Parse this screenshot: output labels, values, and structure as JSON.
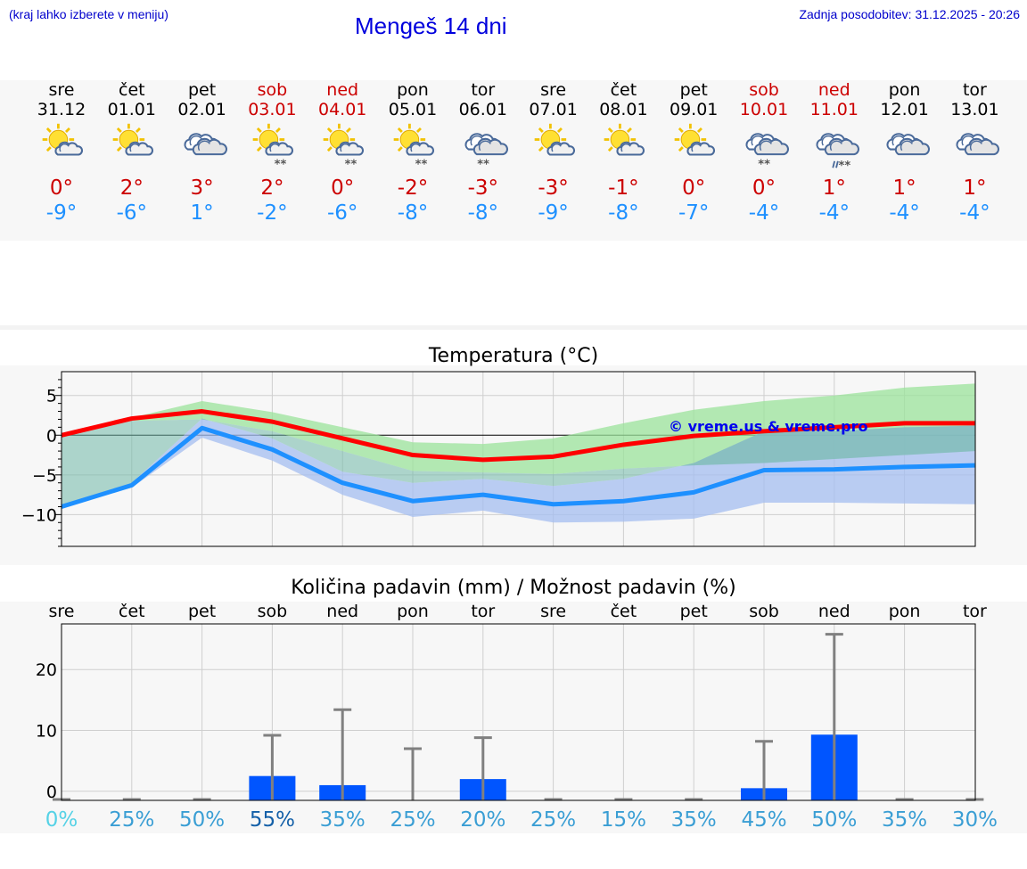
{
  "header": {
    "hint": "(kraj lahko izberete v meniju)",
    "title": "Mengeš 14 dni",
    "updated": "Zadnja posodobitev: 31.12.2025 - 20:26"
  },
  "days": [
    {
      "name": "sre",
      "date": "31.12",
      "weekend": false,
      "icon": "sun-cloud-icon",
      "tmax": "0°",
      "tmin": "-9°"
    },
    {
      "name": "čet",
      "date": "01.01",
      "weekend": false,
      "icon": "sun-cloud-icon",
      "tmax": "2°",
      "tmin": "-6°"
    },
    {
      "name": "pet",
      "date": "02.01",
      "weekend": false,
      "icon": "cloudy-icon",
      "tmax": "3°",
      "tmin": "1°"
    },
    {
      "name": "sob",
      "date": "03.01",
      "weekend": true,
      "icon": "sun-cloud-snow-icon",
      "tmax": "2°",
      "tmin": "-2°"
    },
    {
      "name": "ned",
      "date": "04.01",
      "weekend": true,
      "icon": "sun-cloud-snow-icon",
      "tmax": "0°",
      "tmin": "-6°"
    },
    {
      "name": "pon",
      "date": "05.01",
      "weekend": false,
      "icon": "sun-cloud-snow-icon",
      "tmax": "-2°",
      "tmin": "-8°"
    },
    {
      "name": "tor",
      "date": "06.01",
      "weekend": false,
      "icon": "cloudy-snow-icon",
      "tmax": "-3°",
      "tmin": "-8°"
    },
    {
      "name": "sre",
      "date": "07.01",
      "weekend": false,
      "icon": "sun-cloud-icon",
      "tmax": "-3°",
      "tmin": "-9°"
    },
    {
      "name": "čet",
      "date": "08.01",
      "weekend": false,
      "icon": "sun-cloud-icon",
      "tmax": "-1°",
      "tmin": "-8°"
    },
    {
      "name": "pet",
      "date": "09.01",
      "weekend": false,
      "icon": "sun-cloud-icon",
      "tmax": "0°",
      "tmin": "-7°"
    },
    {
      "name": "sob",
      "date": "10.01",
      "weekend": true,
      "icon": "cloudy-snow-icon",
      "tmax": "0°",
      "tmin": "-4°"
    },
    {
      "name": "ned",
      "date": "11.01",
      "weekend": true,
      "icon": "cloudy-sleet-icon",
      "tmax": "1°",
      "tmin": "-4°"
    },
    {
      "name": "pon",
      "date": "12.01",
      "weekend": false,
      "icon": "cloudy-icon",
      "tmax": "1°",
      "tmin": "-4°"
    },
    {
      "name": "tor",
      "date": "13.01",
      "weekend": false,
      "icon": "cloudy-icon",
      "tmax": "1°",
      "tmin": "-4°"
    }
  ],
  "colors": {
    "max_line": "#ff0000",
    "min_line": "#1e90ff",
    "max_band": "#9be39b",
    "min_band": "#a4bdf0",
    "bar": "#0055ff",
    "errbar": "#808080"
  },
  "chart_data": [
    {
      "type": "line",
      "title": "Temperatura (°C)",
      "watermark": "© vreme.us & vreme.pro",
      "ylim": [
        -14,
        8
      ],
      "yticks": [
        5,
        0,
        -5,
        -10
      ],
      "ytick_labels": [
        "5",
        "0",
        "−5",
        "−10"
      ],
      "x": [
        0,
        1,
        2,
        3,
        4,
        5,
        6,
        7,
        8,
        9,
        10,
        11,
        12,
        13
      ],
      "series": [
        {
          "name": "max",
          "values": [
            0,
            2.1,
            3.0,
            1.7,
            -0.4,
            -2.5,
            -3.1,
            -2.7,
            -1.2,
            -0.1,
            0.5,
            1.0,
            1.5,
            1.5
          ],
          "band_low": [
            0,
            1.8,
            2.0,
            0.5,
            -2.0,
            -4.5,
            -4.7,
            -4.9,
            -4.2,
            -3.8,
            -3.5,
            -3.0,
            -2.5,
            -2.0
          ],
          "band_high": [
            0,
            2.2,
            4.3,
            2.9,
            1.0,
            -0.9,
            -1.1,
            -0.4,
            1.5,
            3.2,
            4.3,
            5.0,
            6.0,
            6.5
          ]
        },
        {
          "name": "min",
          "values": [
            -9.0,
            -6.3,
            0.9,
            -1.8,
            -6.0,
            -8.3,
            -7.5,
            -8.7,
            -8.3,
            -7.2,
            -4.4,
            -4.3,
            -4.0,
            -3.8
          ],
          "band_low": [
            -9.0,
            -6.6,
            -0.3,
            -3.2,
            -7.5,
            -10.3,
            -9.5,
            -11.0,
            -10.9,
            -10.5,
            -8.5,
            -8.5,
            -8.6,
            -8.7
          ],
          "band_high": [
            -9.0,
            -6.0,
            2.1,
            -0.4,
            -4.6,
            -6.0,
            -5.5,
            -6.4,
            -5.5,
            -3.5,
            0.5,
            0.5,
            1.0,
            1.2
          ]
        }
      ]
    },
    {
      "type": "bar",
      "title": "Količina padavin (mm) / Možnost padavin (%)",
      "categories": [
        "sre",
        "čet",
        "pet",
        "sob",
        "ned",
        "pon",
        "tor",
        "sre",
        "čet",
        "pet",
        "sob",
        "ned",
        "pon",
        "tor"
      ],
      "values": [
        0,
        0,
        0,
        2.5,
        1.0,
        0,
        2.0,
        0,
        0,
        0,
        0.5,
        9.3,
        0,
        0
      ],
      "err_high": [
        0,
        0,
        0,
        9.2,
        13.4,
        7.0,
        8.8,
        0,
        0,
        0,
        8.2,
        25.8,
        0,
        0
      ],
      "ylim": [
        -1.5,
        27.5
      ],
      "yticks": [
        20,
        10,
        0
      ],
      "ytick_labels": [
        "20",
        "10",
        "0"
      ],
      "chance": [
        "0%",
        "25%",
        "50%",
        "55%",
        "35%",
        "25%",
        "20%",
        "25%",
        "15%",
        "35%",
        "45%",
        "50%",
        "35%",
        "30%"
      ],
      "chance_colors": [
        "#55d2e6",
        "#3a9ed4",
        "#3a9ed4",
        "#1460a8",
        "#3a9ed4",
        "#3a9ed4",
        "#3a9ed4",
        "#3a9ed4",
        "#3a9ed4",
        "#3a9ed4",
        "#3a9ed4",
        "#3a9ed4",
        "#3a9ed4",
        "#3a9ed4"
      ]
    }
  ]
}
